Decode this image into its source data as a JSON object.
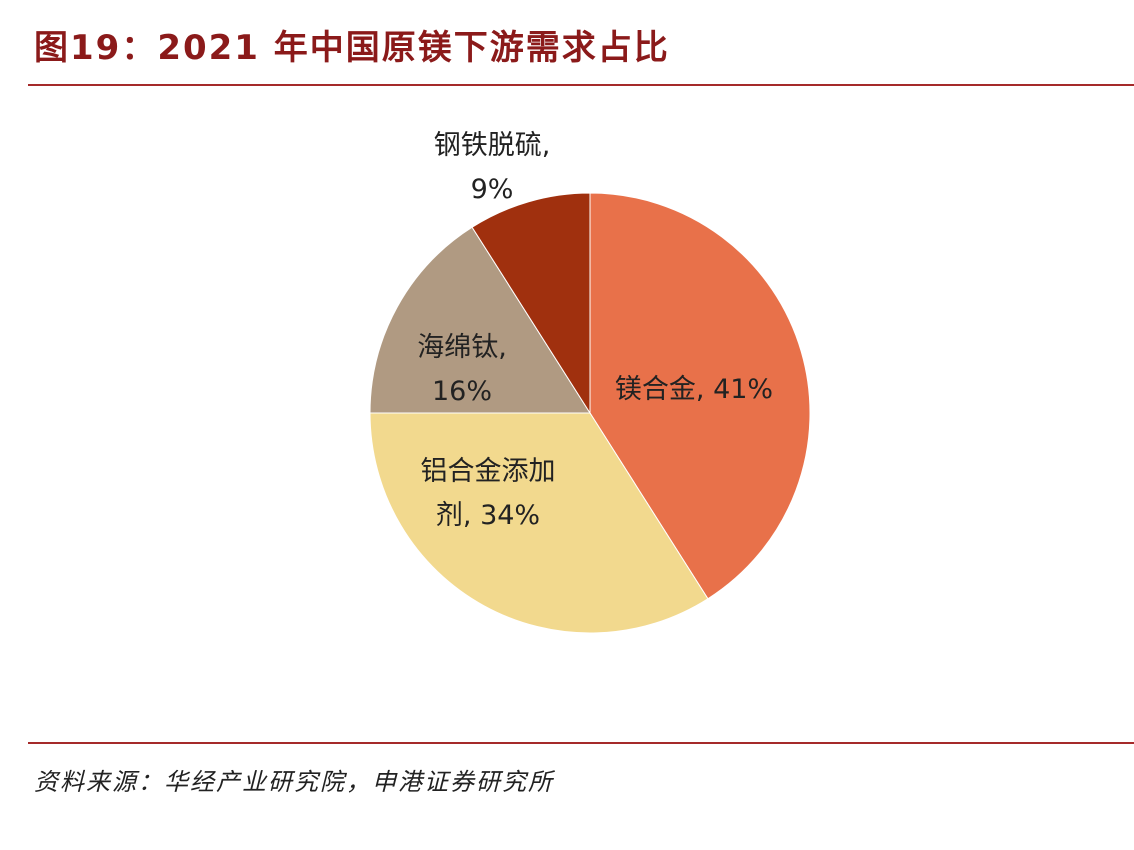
{
  "title": "图19：2021 年中国原镁下游需求占比",
  "source": "资料来源：华经产业研究院，申港证券研究所",
  "chart_data": {
    "type": "pie",
    "title": "图19：2021 年中国原镁下游需求占比",
    "start": "12 o'clock",
    "direction": "clockwise",
    "legend": "none",
    "slices": [
      {
        "name": "镁合金",
        "value": 41,
        "label_lines": [
          "镁合金, 41%"
        ],
        "color": "#e8714a"
      },
      {
        "name": "铝合金添加剂",
        "value": 34,
        "label_lines": [
          "铝合金添加",
          "剂, 34%"
        ],
        "color": "#f2d98e"
      },
      {
        "name": "海绵钛",
        "value": 16,
        "label_lines": [
          "海绵钛,",
          "16%"
        ],
        "color": "#b09a82"
      },
      {
        "name": "钢铁脱硫",
        "value": 9,
        "label_lines": [
          "钢铁脱硫,",
          "9%"
        ],
        "color": "#a0300e"
      }
    ]
  }
}
